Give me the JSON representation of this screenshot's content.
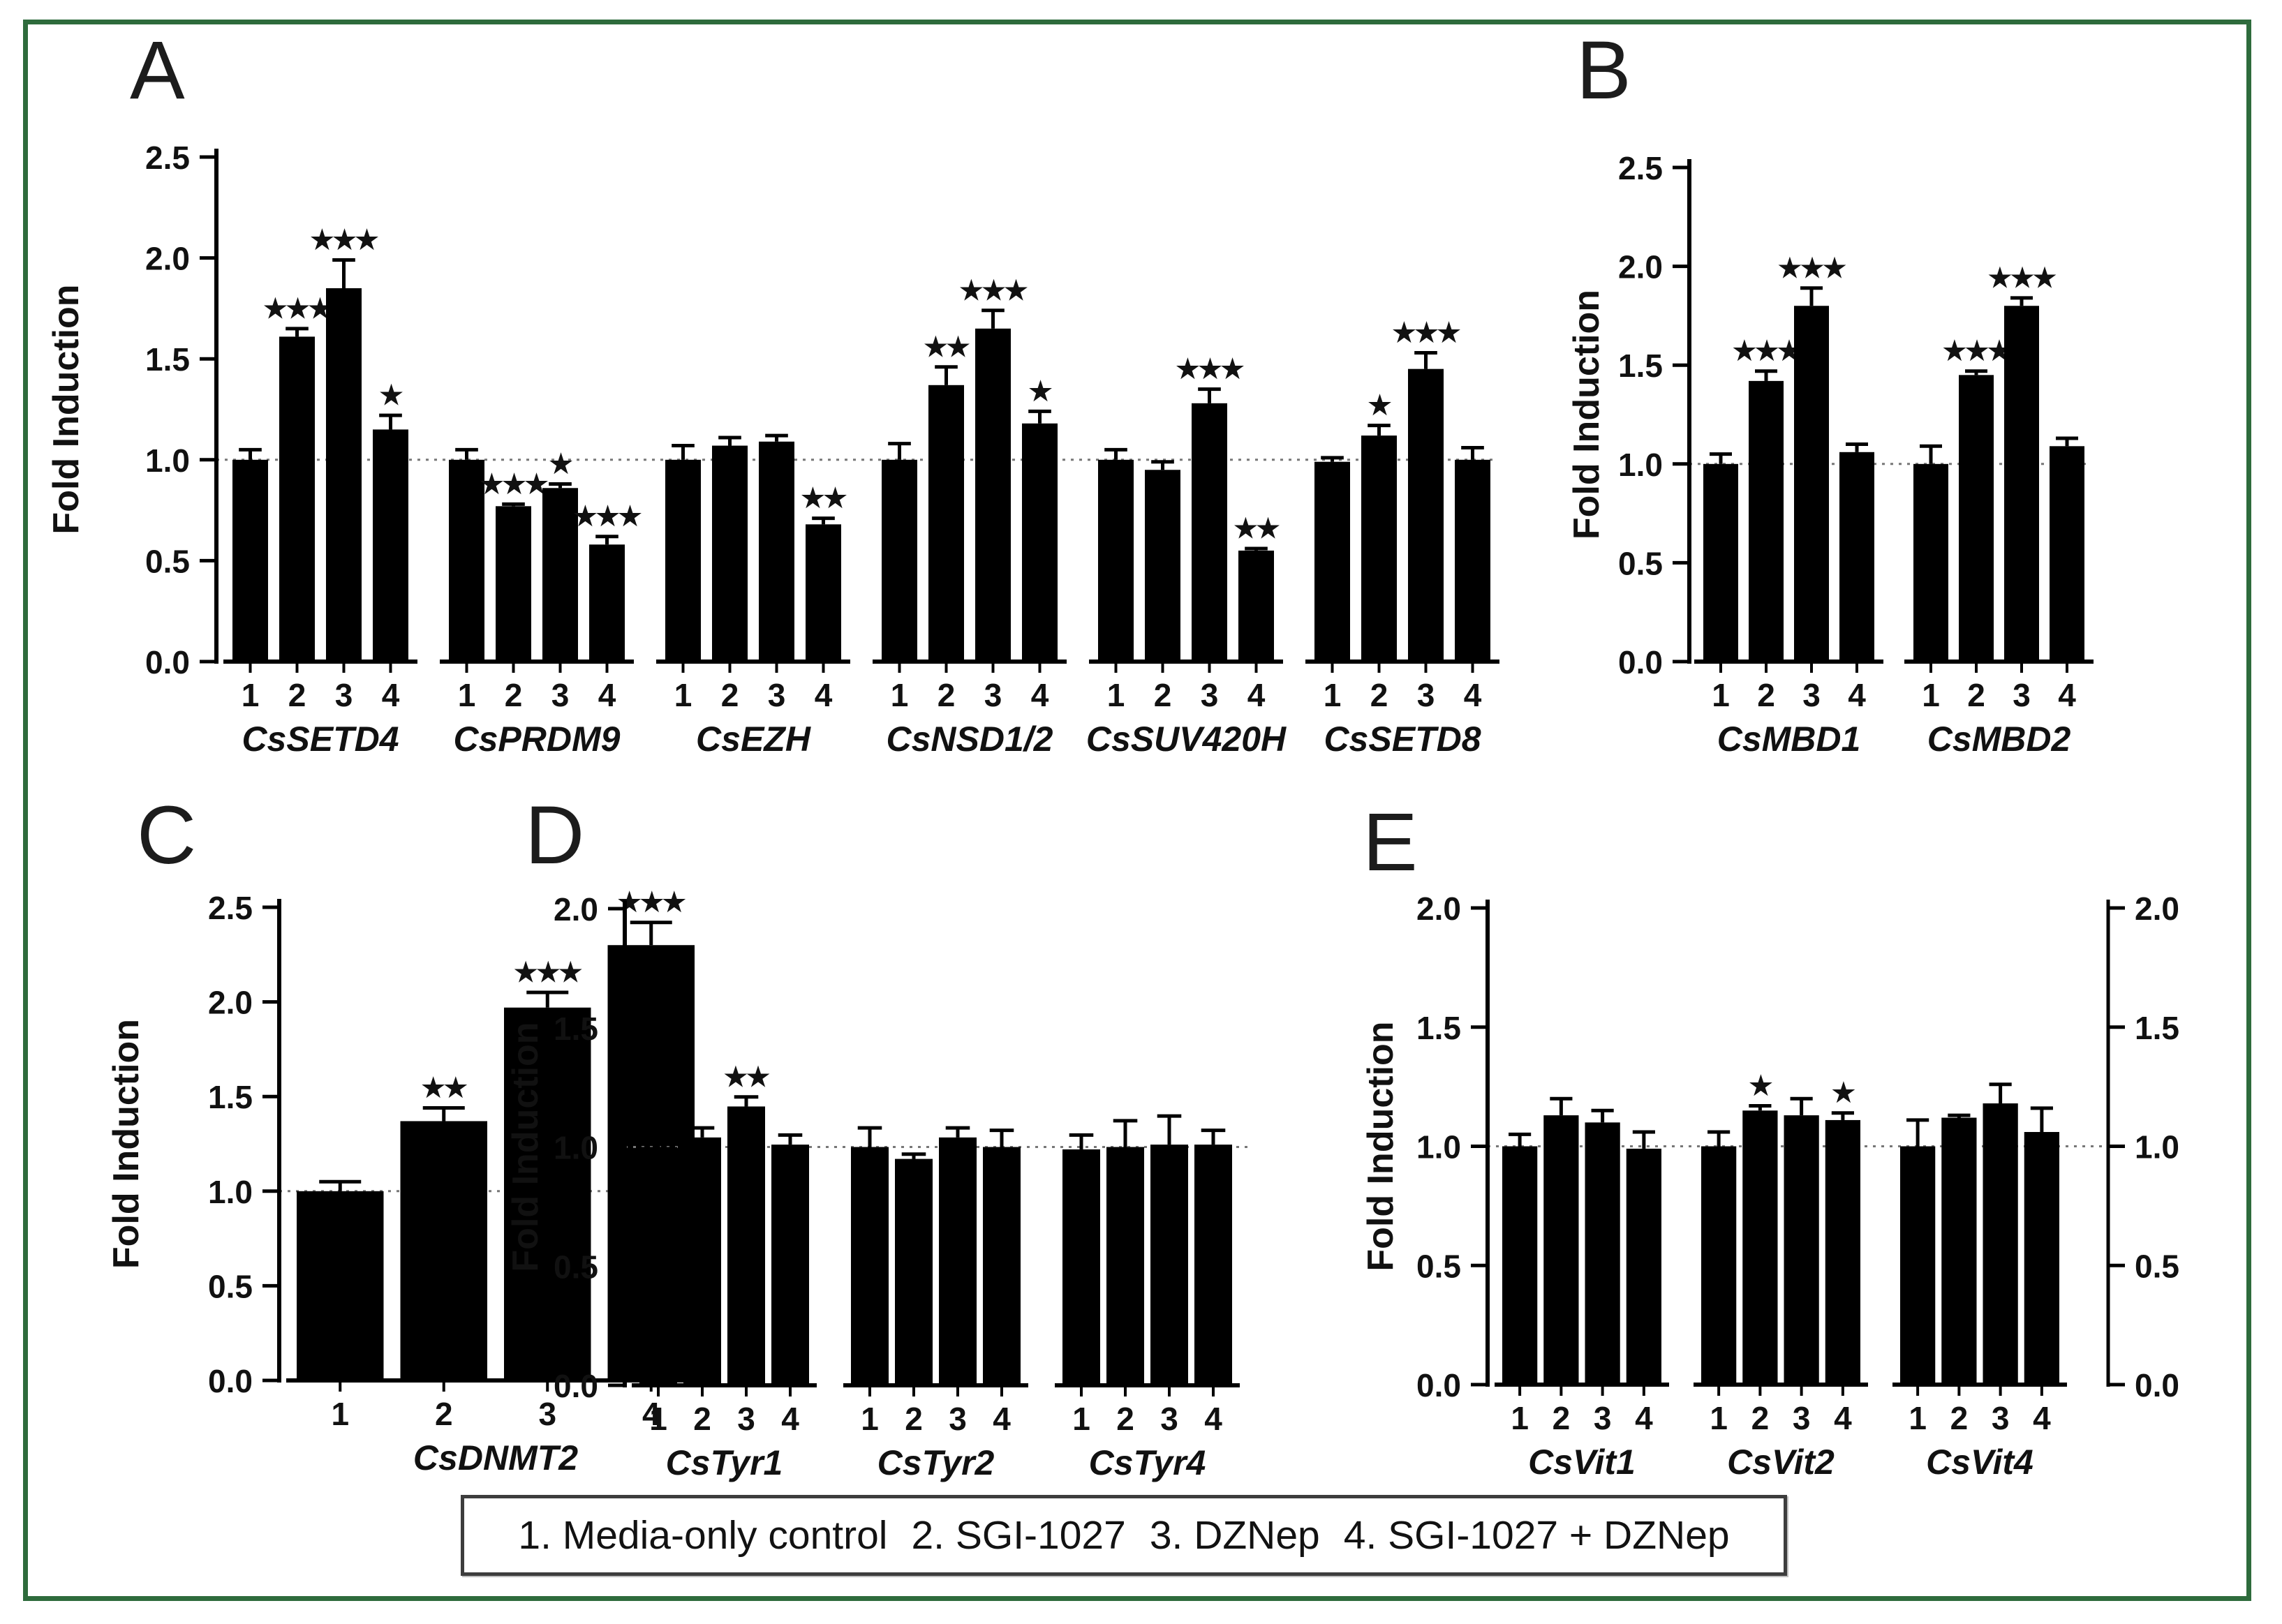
{
  "legend": {
    "items": [
      {
        "text": "1. Media-only control"
      },
      {
        "text": "2. SGI-1027"
      },
      {
        "text": "3. DZNep"
      },
      {
        "text": "4. SGI-1027 + DZNep"
      }
    ]
  },
  "colors": {
    "bar": "#000000",
    "frame_border": "#2e6b3c",
    "reference_line": "#777777",
    "text": "#111111"
  },
  "chart_data": [
    {
      "panel": "A",
      "type": "bar",
      "ylabel": "Fold Induction",
      "ylim": [
        0,
        2.5
      ],
      "yticks": [
        0.0,
        0.5,
        1.0,
        1.5,
        2.0,
        2.5
      ],
      "reference_line": 1.0,
      "bar_labels": [
        "1",
        "2",
        "3",
        "4"
      ],
      "right_axis": false,
      "groups": [
        {
          "gene": "CsSETD4",
          "values": [
            1.0,
            1.61,
            1.85,
            1.15
          ],
          "errors": [
            0.05,
            0.04,
            0.14,
            0.07
          ],
          "sig": [
            "",
            "***",
            "***",
            "*"
          ]
        },
        {
          "gene": "CsPRDM9",
          "values": [
            1.0,
            0.77,
            0.86,
            0.58
          ],
          "errors": [
            0.05,
            0.01,
            0.02,
            0.04
          ],
          "sig": [
            "",
            "***",
            "*",
            "***"
          ]
        },
        {
          "gene": "CsEZH",
          "values": [
            1.0,
            1.07,
            1.09,
            0.68
          ],
          "errors": [
            0.07,
            0.04,
            0.03,
            0.03
          ],
          "sig": [
            "",
            "",
            "",
            "**"
          ]
        },
        {
          "gene": "CsNSD1/2",
          "values": [
            1.0,
            1.37,
            1.65,
            1.18
          ],
          "errors": [
            0.08,
            0.09,
            0.09,
            0.06
          ],
          "sig": [
            "",
            "**",
            "***",
            "*"
          ]
        },
        {
          "gene": "CsSUV420H",
          "values": [
            1.0,
            0.95,
            1.28,
            0.55
          ],
          "errors": [
            0.05,
            0.04,
            0.07,
            0.01
          ],
          "sig": [
            "",
            "",
            "***",
            "**"
          ]
        },
        {
          "gene": "CsSETD8",
          "values": [
            0.99,
            1.12,
            1.45,
            1.0
          ],
          "errors": [
            0.02,
            0.05,
            0.08,
            0.06
          ],
          "sig": [
            "",
            "*",
            "***",
            ""
          ]
        }
      ]
    },
    {
      "panel": "B",
      "type": "bar",
      "ylabel": "Fold Induction",
      "ylim": [
        0,
        2.5
      ],
      "yticks": [
        0.0,
        0.5,
        1.0,
        1.5,
        2.0,
        2.5
      ],
      "reference_line": 1.0,
      "bar_labels": [
        "1",
        "2",
        "3",
        "4"
      ],
      "right_axis": false,
      "groups": [
        {
          "gene": "CsMBD1",
          "values": [
            1.0,
            1.42,
            1.8,
            1.06
          ],
          "errors": [
            0.05,
            0.05,
            0.09,
            0.04
          ],
          "sig": [
            "",
            "***",
            "***",
            ""
          ]
        },
        {
          "gene": "CsMBD2",
          "values": [
            1.0,
            1.45,
            1.8,
            1.09
          ],
          "errors": [
            0.09,
            0.02,
            0.04,
            0.04
          ],
          "sig": [
            "",
            "***",
            "***",
            ""
          ]
        }
      ]
    },
    {
      "panel": "C",
      "type": "bar",
      "ylabel": "Fold Induction",
      "ylim": [
        0,
        2.5
      ],
      "yticks": [
        0.0,
        0.5,
        1.0,
        1.5,
        2.0,
        2.5
      ],
      "reference_line": 1.0,
      "bar_labels": [
        "1",
        "2",
        "3",
        "4"
      ],
      "right_axis": false,
      "groups": [
        {
          "gene": "CsDNMT2",
          "values": [
            1.0,
            1.37,
            1.97,
            2.3
          ],
          "errors": [
            0.05,
            0.07,
            0.08,
            0.12
          ],
          "sig": [
            "",
            "**",
            "***",
            "***"
          ]
        }
      ]
    },
    {
      "panel": "D",
      "type": "bar",
      "ylabel": "Fold Induction",
      "ylim": [
        0,
        2.0
      ],
      "yticks": [
        0.0,
        0.5,
        1.0,
        1.5,
        2.0
      ],
      "reference_line": 1.0,
      "bar_labels": [
        "1",
        "2",
        "3",
        "4"
      ],
      "right_axis": false,
      "groups": [
        {
          "gene": "CsTyr1",
          "values": [
            1.0,
            1.04,
            1.17,
            1.01
          ],
          "errors": [
            0.02,
            0.04,
            0.04,
            0.04
          ],
          "sig": [
            "",
            "",
            "**",
            ""
          ]
        },
        {
          "gene": "CsTyr2",
          "values": [
            1.0,
            0.95,
            1.04,
            1.0
          ],
          "errors": [
            0.08,
            0.02,
            0.04,
            0.07
          ],
          "sig": [
            "",
            "",
            "",
            ""
          ]
        },
        {
          "gene": "CsTyr4",
          "values": [
            0.99,
            1.0,
            1.01,
            1.01
          ],
          "errors": [
            0.06,
            0.11,
            0.12,
            0.06
          ],
          "sig": [
            "",
            "",
            "",
            ""
          ]
        }
      ]
    },
    {
      "panel": "E",
      "type": "bar",
      "ylabel": "Fold Induction",
      "ylim": [
        0,
        2.0
      ],
      "yticks": [
        0.0,
        0.5,
        1.0,
        1.5,
        2.0
      ],
      "reference_line": 1.0,
      "bar_labels": [
        "1",
        "2",
        "3",
        "4"
      ],
      "right_axis": true,
      "groups": [
        {
          "gene": "CsVit1",
          "values": [
            1.0,
            1.13,
            1.1,
            0.99
          ],
          "errors": [
            0.05,
            0.07,
            0.05,
            0.07
          ],
          "sig": [
            "",
            "",
            "",
            ""
          ]
        },
        {
          "gene": "CsVit2",
          "values": [
            1.0,
            1.15,
            1.13,
            1.11
          ],
          "errors": [
            0.06,
            0.02,
            0.07,
            0.03
          ],
          "sig": [
            "",
            "*",
            "",
            "*"
          ]
        },
        {
          "gene": "CsVit4",
          "values": [
            1.0,
            1.12,
            1.18,
            1.06
          ],
          "errors": [
            0.11,
            0.01,
            0.08,
            0.1
          ],
          "sig": [
            "",
            "",
            "",
            ""
          ]
        }
      ]
    }
  ]
}
